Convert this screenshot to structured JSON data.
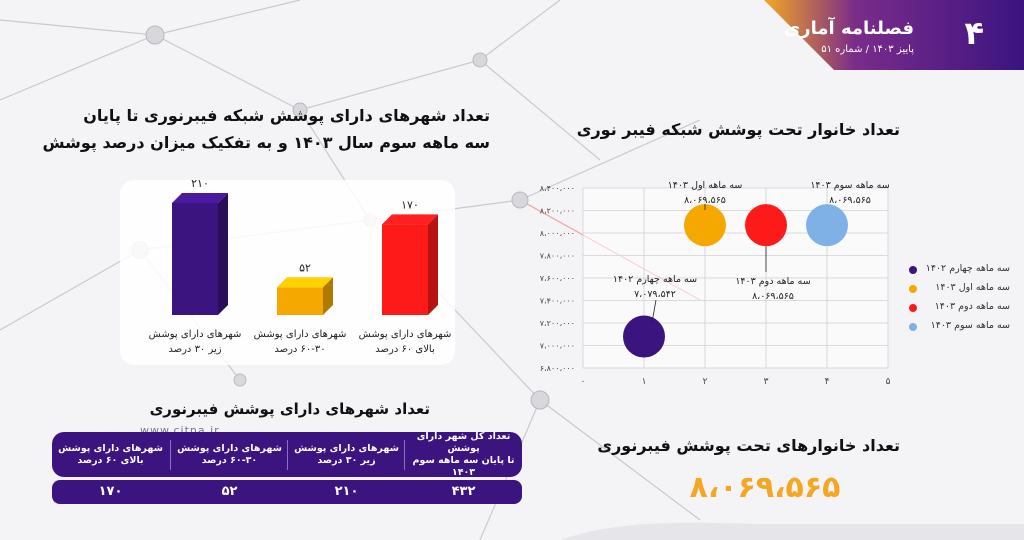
{
  "header": {
    "issue_number": "۴",
    "magazine_title": "فصلنامه آماری",
    "subtitle": "پاییز ۱۴۰۳ / شماره ۵۱",
    "brand_colors": {
      "purple": "#3b1480",
      "orange": "#f5a623"
    }
  },
  "left_chart": {
    "title_line1": "تعداد شهرهای دارای پوشش شبکه فیبرنوری تا پایان",
    "title_line2": "سه ماهه سوم سال ۱۴۰۳ و به تفکیک میزان درصد پوشش"
  },
  "right_chart": {
    "title": "تعداد خانوار تحت پوشش شبکه فیبر نوری",
    "annotations": [
      {
        "line1": "سه ماهه چهارم ۱۴۰۲",
        "line2": "۷،۰۷۹،۵۴۲"
      },
      {
        "line1": "سه ماهه اول ۱۴۰۳",
        "line2": "۸،۰۶۹،۵۶۵"
      },
      {
        "line1": "سه ماهه دوم ۱۴۰۳",
        "line2": "۸،۰۶۹،۵۶۵"
      },
      {
        "line1": "سه ماهه سوم ۱۴۰۳",
        "line2": "۸،۰۶۹،۵۶۵"
      }
    ]
  },
  "table": {
    "title": "تعداد شهرهای دارای پوشش فیبرنوری",
    "headers": [
      {
        "line1": "تعداد کل شهر دارای پوشش",
        "line2": "تا پایان سه ماهه سوم ۱۴۰۳"
      },
      {
        "line1": "شهرهای دارای پوشش",
        "line2": "زیر ۳۰ درصد"
      },
      {
        "line1": "شهرهای دارای پوشش",
        "line2": "۶۰-۳۰ درصد"
      },
      {
        "line1": "شهرهای دارای پوشش",
        "line2": "بالای ۶۰ درصد"
      }
    ],
    "values": [
      "۴۳۲",
      "۲۱۰",
      "۵۲",
      "۱۷۰"
    ]
  },
  "total": {
    "title": "تعداد خانوارهای تحت پوشش فیبرنوری",
    "value": "۸،۰۶۹،۵۶۵"
  },
  "watermark": "www.citna.ir",
  "chart_data": [
    {
      "type": "bar",
      "categories": [
        [
          "شهرهای دارای پوشش",
          "زیر ۳۰ درصد"
        ],
        [
          "شهرهای دارای پوشش",
          "۶۰-۳۰ درصد"
        ],
        [
          "شهرهای دارای پوشش",
          "بالای ۶۰ درصد"
        ]
      ],
      "values": [
        210,
        52,
        170
      ],
      "value_labels": [
        "۲۱۰",
        "۵۲",
        "۱۷۰"
      ],
      "colors": [
        "#3b1480",
        "#f5a800",
        "#ff1a1a"
      ],
      "ylim": [
        0,
        210
      ]
    },
    {
      "type": "scatter",
      "series": [
        {
          "name": "سه ماهه چهارم ۱۴۰۲",
          "x": 1,
          "y": 7079542,
          "color": "#3b1480"
        },
        {
          "name": "سه ماهه اول ۱۴۰۳",
          "x": 2,
          "y": 8069565,
          "color": "#f5a800"
        },
        {
          "name": "سه ماهه دوم ۱۴۰۳",
          "x": 3,
          "y": 8069565,
          "color": "#ff1a1a"
        },
        {
          "name": "سه ماهه سوم ۱۴۰۳",
          "x": 4,
          "y": 8069565,
          "color": "#7fb0e6"
        }
      ],
      "xlim": [
        0,
        5
      ],
      "x_ticks": [
        0,
        1,
        2,
        3,
        4,
        5
      ],
      "ylim": [
        6800000,
        8400000
      ],
      "y_ticks": [
        6800000,
        7000000,
        7200000,
        7400000,
        7600000,
        7800000,
        8000000,
        8200000,
        8400000
      ],
      "y_tick_labels": [
        "۶،۸۰۰،۰۰۰",
        "۷،۰۰۰،۰۰۰",
        "۷،۲۰۰،۰۰۰",
        "۷،۴۰۰،۰۰۰",
        "۷،۶۰۰،۰۰۰",
        "۷،۸۰۰،۰۰۰",
        "۸،۰۰۰،۰۰۰",
        "۸،۲۰۰،۰۰۰",
        "۸،۴۰۰،۰۰۰"
      ],
      "x_tick_labels": [
        "۰",
        "۱",
        "۲",
        "۳",
        "۴",
        "۵"
      ],
      "grid": true,
      "legend": "right"
    }
  ]
}
